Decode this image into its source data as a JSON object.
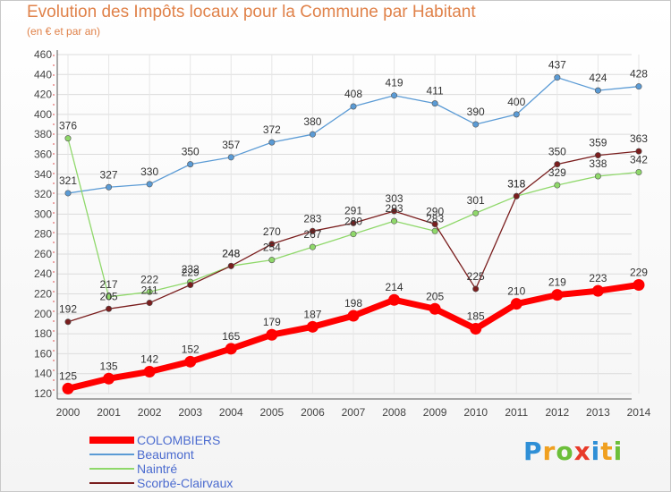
{
  "title": "Evolution des Impôts locaux pour la Commune par Habitant",
  "subtitle": "(en € et par an)",
  "logo": {
    "text": "Proxiti",
    "letters": [
      {
        "ch": "P",
        "color": "#2f8fd6"
      },
      {
        "ch": "r",
        "color": "#f0a020"
      },
      {
        "ch": "o",
        "color": "#6cbf3a"
      },
      {
        "ch": "x",
        "color": "#e83a2a"
      },
      {
        "ch": "i",
        "color": "#2f8fd6"
      },
      {
        "ch": "t",
        "color": "#f0a020"
      },
      {
        "ch": "i",
        "color": "#6cbf3a"
      }
    ]
  },
  "chart_data": {
    "type": "line",
    "x": [
      "2000",
      "2001",
      "2002",
      "2003",
      "2004",
      "2005",
      "2006",
      "2007",
      "2008",
      "2009",
      "2010",
      "2011",
      "2012",
      "2013",
      "2014"
    ],
    "yticks": [
      120,
      140,
      160,
      180,
      200,
      220,
      240,
      260,
      280,
      300,
      320,
      340,
      360,
      380,
      400,
      420,
      440,
      460
    ],
    "ylim": [
      120,
      460
    ],
    "grid": true,
    "legend_position": "bottom-left",
    "series": [
      {
        "name": "COLOMBIERS",
        "color": "#ff0000",
        "values": [
          125,
          135,
          142,
          152,
          165,
          179,
          187,
          198,
          214,
          205,
          185,
          210,
          219,
          223,
          229
        ]
      },
      {
        "name": "Beaumont",
        "color": "#5b9bd5",
        "values": [
          321,
          327,
          330,
          350,
          357,
          372,
          380,
          408,
          419,
          411,
          390,
          400,
          437,
          424,
          428
        ]
      },
      {
        "name": "Naintré",
        "color": "#8fd86a",
        "values": [
          376,
          217,
          222,
          232,
          248,
          254,
          267,
          280,
          293,
          283,
          301,
          318,
          329,
          338,
          342
        ]
      },
      {
        "name": "Scorbé-Clairvaux",
        "color": "#7a1e1e",
        "values": [
          192,
          205,
          211,
          229,
          248,
          270,
          283,
          291,
          303,
          290,
          225,
          318,
          350,
          359,
          363
        ]
      }
    ]
  }
}
